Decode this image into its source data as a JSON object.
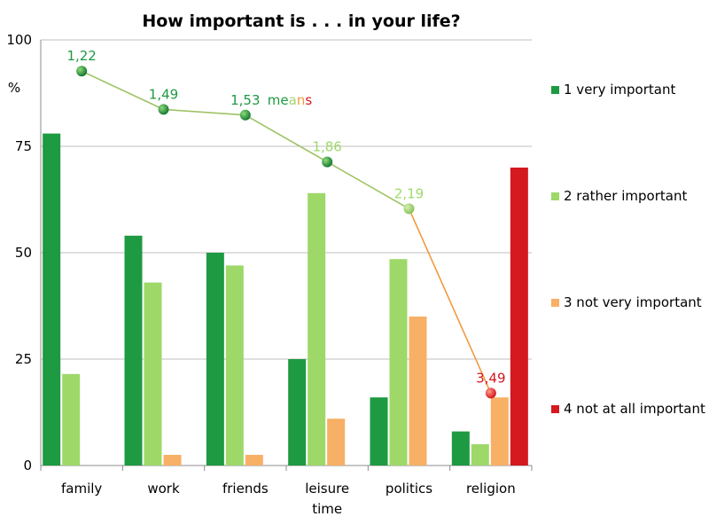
{
  "chart_data": {
    "type": "bar",
    "title": "How important is . . . in your life?",
    "ylabel": "%",
    "ylim": [
      0,
      100
    ],
    "yticks": [
      0,
      25,
      50,
      75,
      100
    ],
    "grid": true,
    "legend_position": "right",
    "categories": [
      [
        "family"
      ],
      [
        "work"
      ],
      [
        "friends"
      ],
      [
        "leisure",
        "time"
      ],
      [
        "politics"
      ],
      [
        "religion"
      ]
    ],
    "series": [
      {
        "name": "1 very important",
        "color": "#1e9a42",
        "values": [
          78,
          54,
          50,
          25,
          16,
          8
        ]
      },
      {
        "name": "2 rather important",
        "color": "#9ed869",
        "values": [
          21.5,
          43,
          47,
          64,
          48.5,
          5
        ]
      },
      {
        "name": "3 not very important",
        "color": "#f7b066",
        "values": [
          0,
          2.5,
          2.5,
          11,
          35,
          16
        ]
      },
      {
        "name": "4 not at all important",
        "color": "#d4191f",
        "values": [
          0,
          0,
          0,
          0,
          0,
          70
        ]
      }
    ],
    "means": {
      "legend": "means",
      "values": [
        1.22,
        1.49,
        1.53,
        1.86,
        2.19,
        3.49
      ],
      "labels": [
        "1,22",
        "1,49",
        "1,53",
        "1,86",
        "2,19",
        "3,49"
      ],
      "line_colors": [
        "#9dc362",
        "#9dc362",
        "#9dc362",
        "#9dc362",
        "#f19a40"
      ],
      "label_colors": [
        "#1e9a42",
        "#1e9a42",
        "#1e9a42",
        "#9ed869",
        "#9ed869",
        "#d4191f"
      ]
    }
  }
}
